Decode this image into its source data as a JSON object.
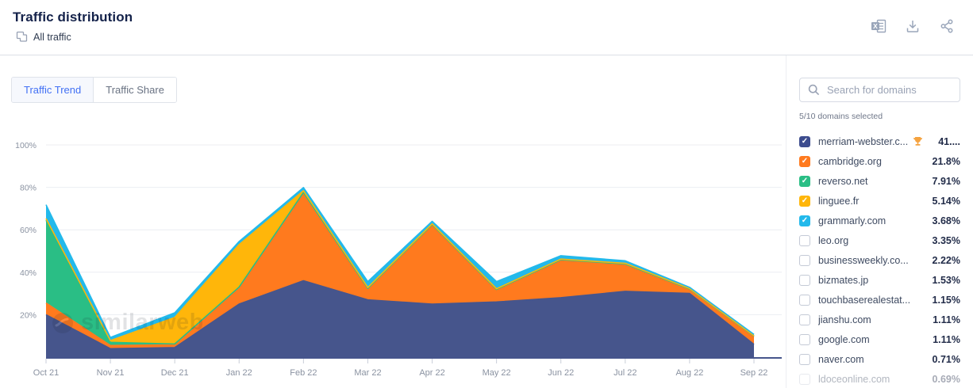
{
  "header": {
    "title": "Traffic distribution",
    "subtitle": "All traffic"
  },
  "toolbar": {
    "icons": [
      "excel-export",
      "download",
      "share"
    ]
  },
  "tabs": {
    "trend": "Traffic Trend",
    "share": "Traffic Share"
  },
  "watermark": "similarweb",
  "chart_data": {
    "type": "area",
    "stacked": true,
    "title": "Traffic Trend",
    "x": [
      "Oct 21",
      "Nov 21",
      "Dec 21",
      "Jan 22",
      "Feb 22",
      "Mar 22",
      "Apr 22",
      "May 22",
      "Jun 22",
      "Jul 22",
      "Aug 22",
      "Sep 22"
    ],
    "series": [
      {
        "name": "merriam-webster.com",
        "color": "#46558C",
        "values": [
          20,
          4,
          4.5,
          25,
          36,
          27,
          25,
          26,
          28,
          31,
          30,
          6
        ]
      },
      {
        "name": "cambridge.org",
        "color": "#FF7A1E",
        "values": [
          5.5,
          1.5,
          1.3,
          7.5,
          41,
          5,
          37,
          5.5,
          17.5,
          12.5,
          1.5,
          3.5
        ]
      },
      {
        "name": "reverso.net",
        "color": "#2ABE85",
        "values": [
          39,
          1.5,
          0.4,
          0.5,
          0.6,
          0.4,
          0.5,
          0.4,
          0.4,
          0.4,
          0.6,
          0.4
        ]
      },
      {
        "name": "linguee.fr",
        "color": "#FFB60A",
        "values": [
          0.8,
          0.8,
          12.5,
          20,
          0.8,
          0.4,
          0.3,
          0.3,
          0.3,
          0.3,
          0.2,
          0.2
        ]
      },
      {
        "name": "grammarly.com",
        "color": "#23B9EB",
        "values": [
          6.5,
          1.5,
          2.2,
          1.5,
          1.5,
          2.8,
          1.2,
          3.4,
          1.6,
          1.2,
          0.6,
          0.6
        ]
      }
    ],
    "xlabel": "",
    "ylabel": "",
    "ylim": [
      0,
      100
    ],
    "yticks": [
      20,
      40,
      60,
      80,
      100
    ],
    "ytick_suffix": "%",
    "grid": true,
    "legend_position": "right-sidebar"
  },
  "sidebar": {
    "search_placeholder": "Search for domains",
    "selected_info": "5/10 domains selected",
    "domains": [
      {
        "label": "merriam-webster.c...",
        "value": "41....",
        "color": "#3D4C8E",
        "checked": true,
        "trophy": true
      },
      {
        "label": "cambridge.org",
        "value": "21.8%",
        "color": "#FF7A1E",
        "checked": true
      },
      {
        "label": "reverso.net",
        "value": "7.91%",
        "color": "#2ABE85",
        "checked": true
      },
      {
        "label": "linguee.fr",
        "value": "5.14%",
        "color": "#FFB60A",
        "checked": true
      },
      {
        "label": "grammarly.com",
        "value": "3.68%",
        "color": "#23B9EB",
        "checked": true
      },
      {
        "label": "leo.org",
        "value": "3.35%",
        "checked": false
      },
      {
        "label": "businessweekly.co...",
        "value": "2.22%",
        "checked": false
      },
      {
        "label": "bizmates.jp",
        "value": "1.53%",
        "checked": false
      },
      {
        "label": "touchbaserealestat...",
        "value": "1.15%",
        "checked": false
      },
      {
        "label": "jianshu.com",
        "value": "1.11%",
        "checked": false
      },
      {
        "label": "google.com",
        "value": "1.11%",
        "checked": false
      },
      {
        "label": "naver.com",
        "value": "0.71%",
        "checked": false
      },
      {
        "label": "ldoceonline.com",
        "value": "0.69%",
        "checked": false,
        "faded": true
      }
    ]
  }
}
